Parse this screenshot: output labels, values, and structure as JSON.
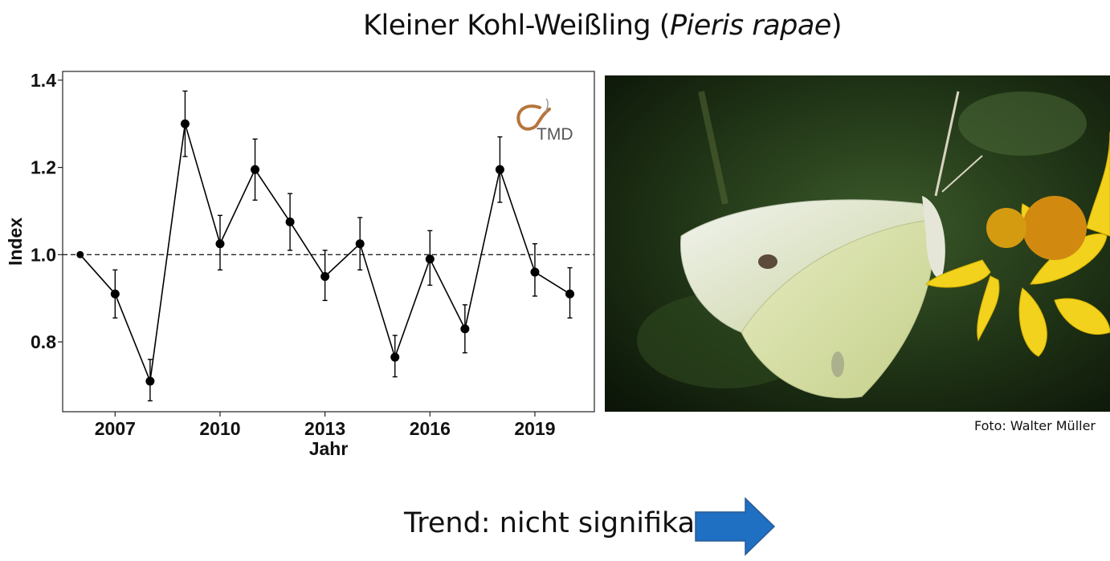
{
  "page": {
    "title_main": "Kleiner Kohl-Weißling (",
    "title_species": "Pieris rapae",
    "title_close": ")",
    "photo_credit": "Foto: Walter Müller",
    "trend_text": "Trend: nicht signifikant",
    "logo_text": "TMD",
    "arrow_color": "#1f6fc2"
  },
  "chart_data": {
    "type": "line",
    "title": "",
    "xlabel": "Jahr",
    "ylabel": "Index",
    "xlim": [
      2005.5,
      2020.7
    ],
    "ylim": [
      0.64,
      1.42
    ],
    "xticks": [
      2007,
      2010,
      2013,
      2016,
      2019
    ],
    "yticks": [
      0.8,
      1.0,
      1.2,
      1.4
    ],
    "ytick_labels": [
      "0.8",
      "1.0",
      "1.2",
      "1.4"
    ],
    "reference_line": 1.0,
    "grid": false,
    "series": [
      {
        "x": [
          2006,
          2007,
          2008,
          2009,
          2010,
          2011,
          2012,
          2013,
          2014,
          2015,
          2016,
          2017,
          2018,
          2019,
          2020
        ],
        "y": [
          1.0,
          0.91,
          0.71,
          1.3,
          1.025,
          1.195,
          1.075,
          0.95,
          1.025,
          0.765,
          0.99,
          0.83,
          1.195,
          0.96,
          0.91
        ],
        "y_lower": [
          null,
          0.855,
          0.665,
          1.225,
          0.965,
          1.125,
          1.01,
          0.895,
          0.965,
          0.72,
          0.93,
          0.775,
          1.12,
          0.905,
          0.855
        ],
        "y_upper": [
          null,
          0.965,
          0.76,
          1.375,
          1.09,
          1.265,
          1.14,
          1.01,
          1.085,
          0.815,
          1.055,
          0.885,
          1.27,
          1.025,
          0.97
        ]
      }
    ]
  }
}
